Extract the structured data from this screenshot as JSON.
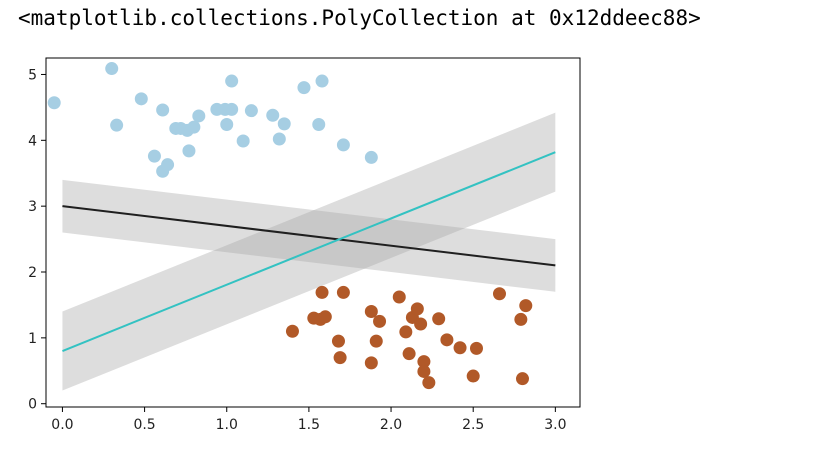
{
  "output_repr": "<matplotlib.collections.PolyCollection at 0x12ddeec88>",
  "chart_data": {
    "type": "scatter",
    "title": "",
    "xlabel": "",
    "ylabel": "",
    "xlim": [
      -0.1,
      3.15
    ],
    "ylim": [
      -0.05,
      5.25
    ],
    "x_ticks": [
      0.0,
      0.5,
      1.0,
      1.5,
      2.0,
      2.5,
      3.0
    ],
    "x_tick_labels": [
      "0.0",
      "0.5",
      "1.0",
      "1.5",
      "2.0",
      "2.5",
      "3.0"
    ],
    "y_ticks": [
      0,
      1,
      2,
      3,
      4,
      5
    ],
    "y_tick_labels": [
      "0",
      "1",
      "2",
      "3",
      "4",
      "5"
    ],
    "grid": false,
    "legend": "none",
    "series": [
      {
        "kind": "scatter",
        "color": "#a6cee3",
        "points": [
          [
            -0.05,
            4.57
          ],
          [
            0.3,
            5.09
          ],
          [
            0.33,
            4.23
          ],
          [
            0.48,
            4.63
          ],
          [
            0.56,
            3.76
          ],
          [
            0.61,
            4.46
          ],
          [
            0.61,
            3.53
          ],
          [
            0.64,
            3.63
          ],
          [
            0.69,
            4.18
          ],
          [
            0.72,
            4.18
          ],
          [
            0.76,
            4.15
          ],
          [
            0.77,
            3.84
          ],
          [
            0.8,
            4.2
          ],
          [
            0.83,
            4.37
          ],
          [
            0.94,
            4.47
          ],
          [
            0.99,
            4.47
          ],
          [
            1.0,
            4.24
          ],
          [
            1.03,
            4.47
          ],
          [
            1.03,
            4.9
          ],
          [
            1.1,
            3.99
          ],
          [
            1.15,
            4.45
          ],
          [
            1.28,
            4.38
          ],
          [
            1.32,
            4.02
          ],
          [
            1.35,
            4.25
          ],
          [
            1.47,
            4.8
          ],
          [
            1.56,
            4.24
          ],
          [
            1.58,
            4.9
          ],
          [
            1.71,
            3.93
          ],
          [
            1.88,
            3.74
          ]
        ]
      },
      {
        "kind": "scatter",
        "color": "#b15928",
        "points": [
          [
            1.4,
            1.1
          ],
          [
            1.53,
            1.3
          ],
          [
            1.57,
            1.28
          ],
          [
            1.58,
            1.69
          ],
          [
            1.6,
            1.32
          ],
          [
            1.68,
            0.95
          ],
          [
            1.69,
            0.7
          ],
          [
            1.71,
            1.69
          ],
          [
            1.88,
            1.4
          ],
          [
            1.88,
            0.62
          ],
          [
            1.91,
            0.95
          ],
          [
            1.93,
            1.25
          ],
          [
            2.05,
            1.62
          ],
          [
            2.09,
            1.09
          ],
          [
            2.11,
            0.76
          ],
          [
            2.13,
            1.31
          ],
          [
            2.16,
            1.44
          ],
          [
            2.18,
            1.21
          ],
          [
            2.2,
            0.64
          ],
          [
            2.2,
            0.49
          ],
          [
            2.23,
            0.32
          ],
          [
            2.29,
            1.29
          ],
          [
            2.34,
            0.97
          ],
          [
            2.42,
            0.85
          ],
          [
            2.5,
            0.42
          ],
          [
            2.52,
            0.84
          ],
          [
            2.66,
            1.67
          ],
          [
            2.79,
            1.28
          ],
          [
            2.8,
            0.38
          ],
          [
            2.82,
            1.49
          ]
        ]
      },
      {
        "kind": "line",
        "color": "#1f1f1f",
        "x": [
          0.0,
          3.0
        ],
        "y": [
          3.0,
          2.1
        ],
        "band_upper": [
          3.4,
          2.5
        ],
        "band_lower": [
          2.6,
          1.7
        ],
        "band_color": "#aaaaaa"
      },
      {
        "kind": "line",
        "color": "#33c2c2",
        "x": [
          0.0,
          3.0
        ],
        "y": [
          0.8,
          3.82
        ],
        "band_upper": [
          1.4,
          4.42
        ],
        "band_lower": [
          0.2,
          3.22
        ],
        "band_color": "#aaaaaa"
      }
    ]
  }
}
